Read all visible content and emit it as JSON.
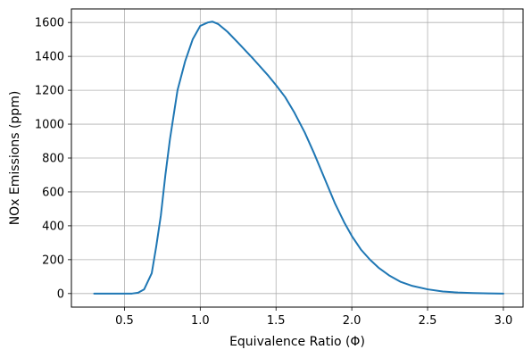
{
  "chart_data": {
    "type": "line",
    "xlabel": "Equivalence Ratio (Φ)",
    "ylabel": "NOx Emissions (ppm)",
    "xlim": [
      0.15,
      3.13
    ],
    "ylim": [
      -80,
      1680
    ],
    "xticks": [
      0.5,
      1.0,
      1.5,
      2.0,
      2.5,
      3.0
    ],
    "xtick_labels": [
      "0.5",
      "1.0",
      "1.5",
      "2.0",
      "2.5",
      "3.0"
    ],
    "yticks": [
      0,
      200,
      400,
      600,
      800,
      1000,
      1200,
      1400,
      1600
    ],
    "ytick_labels": [
      "0",
      "200",
      "400",
      "600",
      "800",
      "1000",
      "1200",
      "1400",
      "1600"
    ],
    "grid": true,
    "color": "#1f77b4",
    "series": [
      {
        "x": [
          0.3,
          0.4,
          0.5,
          0.55,
          0.59,
          0.63,
          0.68,
          0.71,
          0.74,
          0.77,
          0.8,
          0.85,
          0.9,
          0.95,
          1.0,
          1.05,
          1.08,
          1.12,
          1.18,
          1.25,
          1.35,
          1.45,
          1.5,
          1.56,
          1.62,
          1.69,
          1.75,
          1.82,
          1.89,
          1.95,
          2.0,
          2.06,
          2.12,
          2.18,
          2.25,
          2.32,
          2.4,
          2.5,
          2.6,
          2.7,
          2.8,
          2.9,
          3.0
        ],
        "y": [
          0,
          0,
          0,
          0,
          5,
          25,
          120,
          280,
          460,
          700,
          910,
          1200,
          1370,
          1500,
          1580,
          1600,
          1605,
          1590,
          1545,
          1480,
          1385,
          1285,
          1230,
          1160,
          1070,
          950,
          830,
          680,
          530,
          420,
          340,
          260,
          200,
          150,
          105,
          70,
          45,
          25,
          12,
          6,
          3,
          1,
          0
        ]
      }
    ]
  }
}
